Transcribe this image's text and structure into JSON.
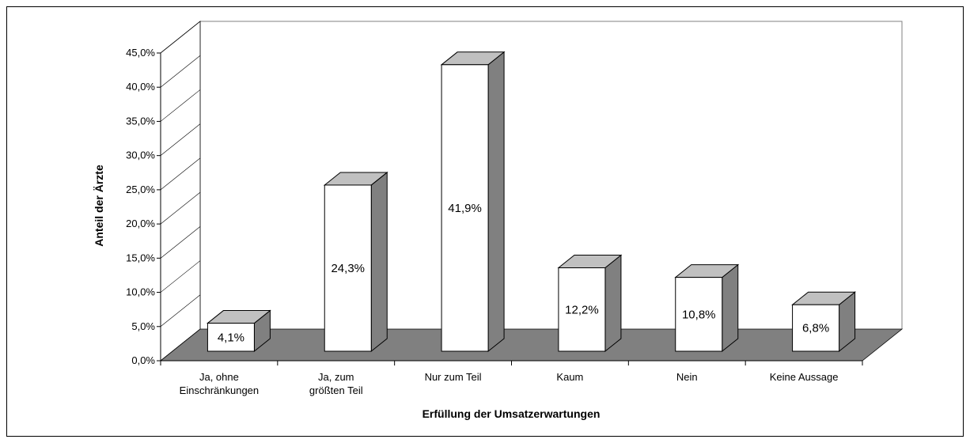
{
  "chart_data": {
    "type": "bar3d",
    "x_label": "Erfüllung der Umsatzerwartungen",
    "y_label": "Anteil der Ärzte",
    "categories": [
      "Ja, ohne\nEinschränkungen",
      "Ja, zum\ngrößten Teil",
      "Nur zum Teil",
      "Kaum",
      "Nein",
      "Keine Aussage"
    ],
    "values": [
      4.1,
      24.3,
      41.9,
      12.2,
      10.8,
      6.8
    ],
    "value_labels": [
      "4,1%",
      "24,3%",
      "41,9%",
      "12,2%",
      "10,8%",
      "6,8%"
    ],
    "colors": {
      "front": "#ffffff",
      "side": "#808080",
      "top": "#c0c0c0",
      "floor": "#808080"
    },
    "ylim": [
      0,
      45
    ],
    "yticks": [
      {
        "value": 0,
        "label": "0,0%"
      },
      {
        "value": 5,
        "label": "5,0%"
      },
      {
        "value": 10,
        "label": "10,0%"
      },
      {
        "value": 15,
        "label": "15,0%"
      },
      {
        "value": 20,
        "label": "20,0%"
      },
      {
        "value": 25,
        "label": "25,0%"
      },
      {
        "value": 30,
        "label": "30,0%"
      },
      {
        "value": 35,
        "label": "35,0%"
      },
      {
        "value": 40,
        "label": "40,0%"
      },
      {
        "value": 45,
        "label": "45,0%"
      }
    ]
  }
}
